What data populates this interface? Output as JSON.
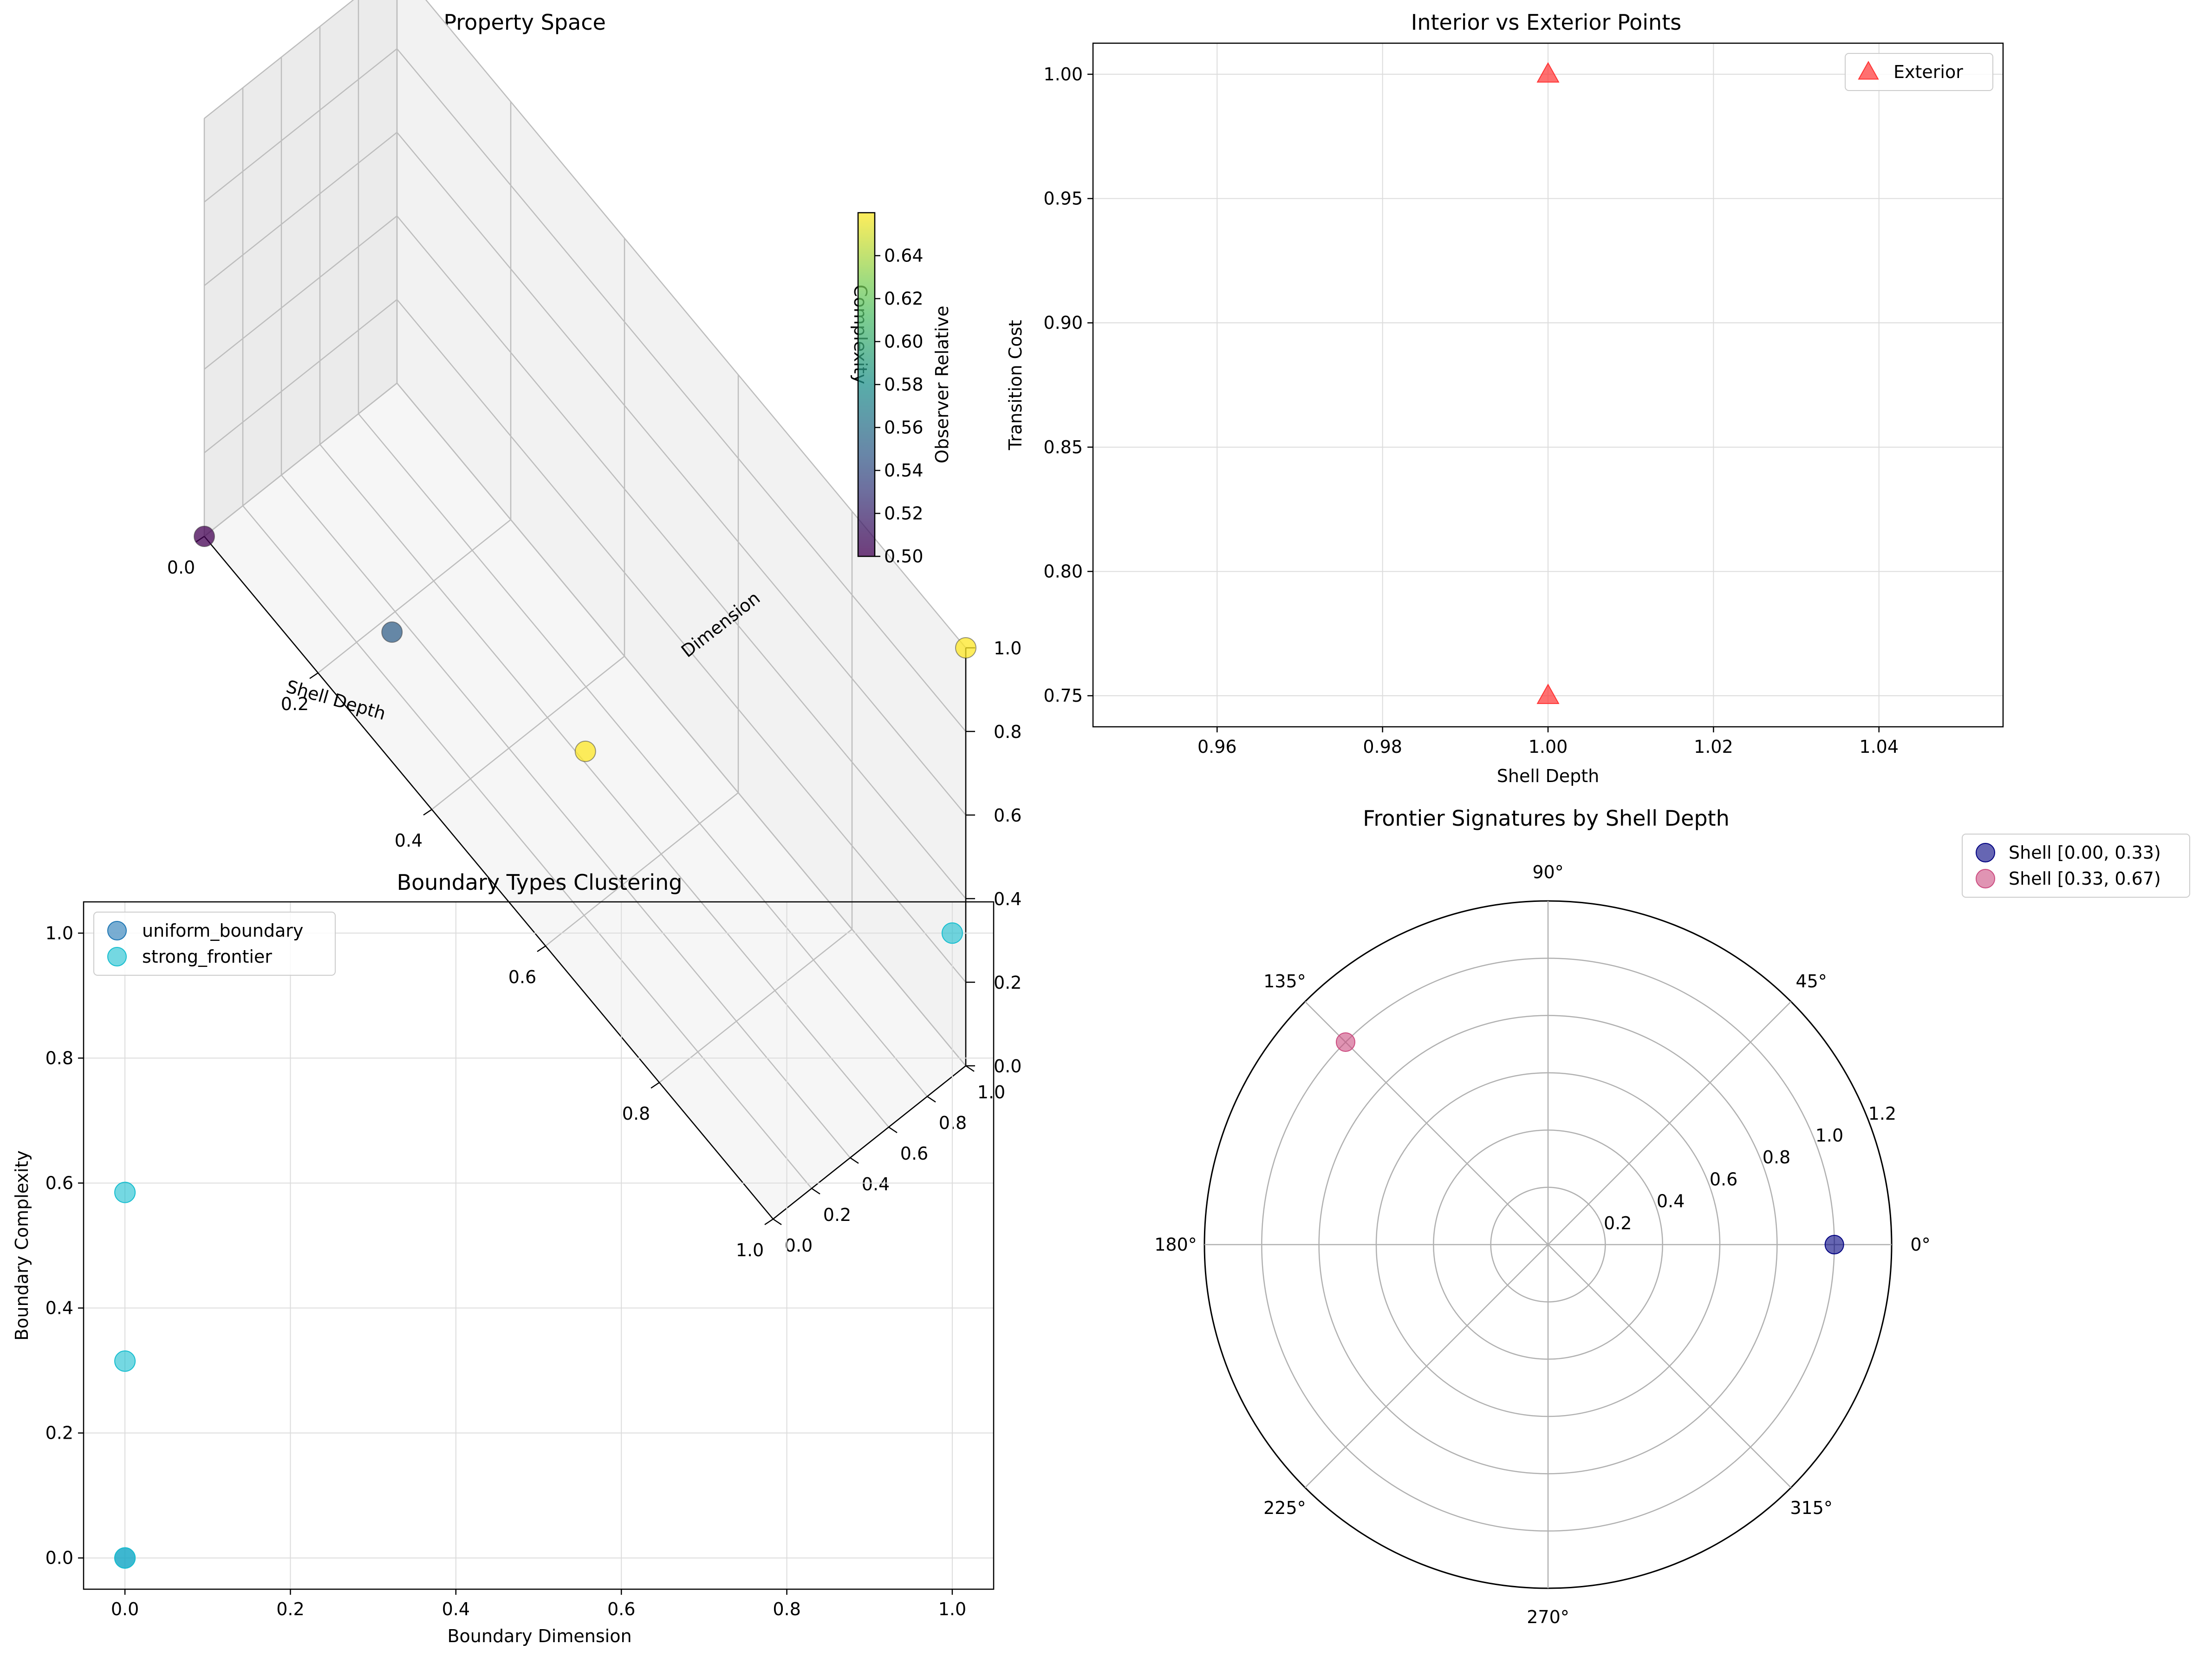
{
  "chart_data": [
    {
      "type": "scatter",
      "projection": "3d",
      "title": "Boundary Property Space",
      "xlabel": "Shell Depth",
      "ylabel": "Dimension",
      "zlabel": "Complexity",
      "xlim": [
        0,
        1
      ],
      "ylim": [
        0,
        1
      ],
      "zlim": [
        0,
        1
      ],
      "xticks": [
        "0.0",
        "0.2",
        "0.4",
        "0.6",
        "0.8",
        "1.0"
      ],
      "yticks": [
        "0.0",
        "0.2",
        "0.4",
        "0.6",
        "0.8",
        "1.0"
      ],
      "zticks": [
        "0.0",
        "0.2",
        "0.4",
        "0.6",
        "0.8",
        "1.0"
      ],
      "colorbar": {
        "label": "Observer Relative",
        "range": [
          0.5,
          0.66
        ],
        "ticks": [
          "0.50",
          "0.52",
          "0.54",
          "0.56",
          "0.58",
          "0.60",
          "0.62",
          "0.64"
        ],
        "colormap": "viridis"
      },
      "points": [
        {
          "x": 0.0,
          "y": 0.0,
          "z": 0.0,
          "c": 0.5
        },
        {
          "x": 0.33,
          "y": 0.0,
          "z": 0.31,
          "c": 0.55
        },
        {
          "x": 0.67,
          "y": 0.0,
          "z": 0.58,
          "c": 0.66
        },
        {
          "x": 1.0,
          "y": 1.0,
          "z": 1.0,
          "c": 0.66
        }
      ],
      "grid": true
    },
    {
      "type": "scatter",
      "title": "Interior vs Exterior Points",
      "xlabel": "Shell Depth",
      "ylabel": "Transition Cost",
      "xlim": [
        0.945,
        1.055
      ],
      "ylim": [
        0.7375,
        1.0125
      ],
      "xticks": [
        "0.96",
        "0.98",
        "1.00",
        "1.02",
        "1.04"
      ],
      "yticks": [
        "0.75",
        "0.80",
        "0.85",
        "0.90",
        "0.95",
        "1.00"
      ],
      "legend": "top-right",
      "series": [
        {
          "name": "Exterior",
          "marker": "triangle",
          "color": "#ff3333",
          "points": [
            [
              1.0,
              1.0
            ],
            [
              1.0,
              0.75
            ]
          ]
        }
      ],
      "grid": true
    },
    {
      "type": "scatter",
      "title": "Boundary Types Clustering",
      "xlabel": "Boundary Dimension",
      "ylabel": "Boundary Complexity",
      "xlim": [
        -0.05,
        1.05
      ],
      "ylim": [
        -0.05,
        1.05
      ],
      "xticks": [
        "0.0",
        "0.2",
        "0.4",
        "0.6",
        "0.8",
        "1.0"
      ],
      "yticks": [
        "0.0",
        "0.2",
        "0.4",
        "0.6",
        "0.8",
        "1.0"
      ],
      "legend": "top-left",
      "series": [
        {
          "name": "uniform_boundary",
          "color": "#1f77b4",
          "points": [
            [
              0.0,
              0.0
            ]
          ]
        },
        {
          "name": "strong_frontier",
          "color": "#17becf",
          "points": [
            [
              0.0,
              0.0
            ],
            [
              0.0,
              0.315
            ],
            [
              0.0,
              0.585
            ],
            [
              1.0,
              1.0
            ]
          ]
        }
      ],
      "grid": true
    },
    {
      "type": "scatter",
      "projection": "polar",
      "title": "Frontier Signatures by Shell Depth",
      "rmax": 1.2,
      "rticks": [
        "0.2",
        "0.4",
        "0.6",
        "0.8",
        "1.0",
        "1.2"
      ],
      "thetaticks": [
        "0°",
        "45°",
        "90°",
        "135°",
        "180°",
        "225°",
        "270°",
        "315°"
      ],
      "legend": "outside-top-right",
      "series": [
        {
          "name": "Shell [0.00, 0.33)",
          "color": "#000080",
          "points": [
            {
              "theta_deg": 0,
              "r": 1.0
            }
          ]
        },
        {
          "name": "Shell [0.33, 0.67)",
          "color": "#cc4c80",
          "points": [
            {
              "theta_deg": 135,
              "r": 1.0
            }
          ]
        }
      ],
      "grid": true
    }
  ]
}
